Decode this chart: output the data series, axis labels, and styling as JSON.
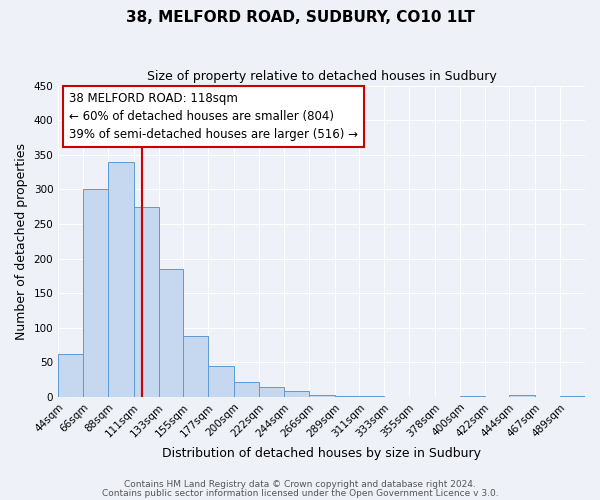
{
  "title": "38, MELFORD ROAD, SUDBURY, CO10 1LT",
  "subtitle": "Size of property relative to detached houses in Sudbury",
  "xlabel": "Distribution of detached houses by size in Sudbury",
  "ylabel": "Number of detached properties",
  "bar_color": "#c5d8f0",
  "bar_edge_color": "#5b9bd5",
  "bin_labels": [
    "44sqm",
    "66sqm",
    "88sqm",
    "111sqm",
    "133sqm",
    "155sqm",
    "177sqm",
    "200sqm",
    "222sqm",
    "244sqm",
    "266sqm",
    "289sqm",
    "311sqm",
    "333sqm",
    "355sqm",
    "378sqm",
    "400sqm",
    "422sqm",
    "444sqm",
    "467sqm",
    "489sqm"
  ],
  "bar_heights": [
    62,
    301,
    340,
    275,
    185,
    88,
    45,
    22,
    15,
    8,
    3,
    2,
    1,
    0,
    0,
    0,
    2,
    0,
    3,
    0,
    2
  ],
  "bin_edges": [
    44,
    66,
    88,
    111,
    133,
    155,
    177,
    200,
    222,
    244,
    266,
    289,
    311,
    333,
    355,
    378,
    400,
    422,
    444,
    467,
    489,
    511
  ],
  "ylim": [
    0,
    450
  ],
  "yticks": [
    0,
    50,
    100,
    150,
    200,
    250,
    300,
    350,
    400,
    450
  ],
  "vline_x": 118,
  "vline_color": "#cc0000",
  "annotation_lines": [
    "38 MELFORD ROAD: 118sqm",
    "← 60% of detached houses are smaller (804)",
    "39% of semi-detached houses are larger (516) →"
  ],
  "annotation_box_color": "#ffffff",
  "annotation_box_edge_color": "#cc0000",
  "footer1": "Contains HM Land Registry data © Crown copyright and database right 2024.",
  "footer2": "Contains public sector information licensed under the Open Government Licence v 3.0.",
  "background_color": "#eef2f8",
  "grid_color": "#ffffff",
  "title_fontsize": 11,
  "subtitle_fontsize": 9,
  "axis_label_fontsize": 9,
  "tick_fontsize": 7.5,
  "annotation_fontsize": 8.5,
  "footer_fontsize": 6.5
}
